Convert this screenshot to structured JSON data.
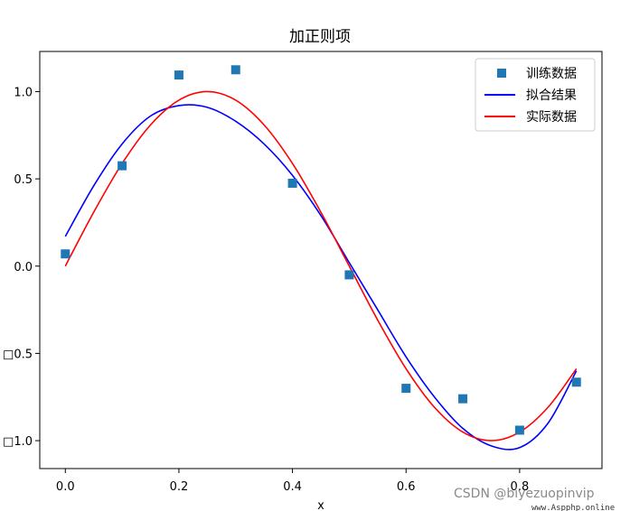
{
  "chart_data": {
    "type": "scatter",
    "title": "加正则项",
    "xlabel": "x",
    "ylabel": "",
    "xlim": [
      -0.045,
      0.945
    ],
    "ylim": [
      -1.16,
      1.23
    ],
    "xticks": [
      0.0,
      0.2,
      0.4,
      0.6,
      0.8
    ],
    "xtick_labels": [
      "0.0",
      "0.2",
      "0.4",
      "0.6",
      "0.8"
    ],
    "yticks": [
      1.0,
      0.5,
      0.0,
      -0.5,
      -1.0
    ],
    "ytick_labels": [
      "1.0",
      "0.5",
      "0.0",
      "□0.5",
      "□1.0"
    ],
    "grid": false,
    "legend_position": "top-right",
    "series": [
      {
        "name": "训练数据",
        "kind": "scatter",
        "marker": "square",
        "color": "#1f77b4",
        "x": [
          0.0,
          0.1,
          0.2,
          0.3,
          0.4,
          0.5,
          0.6,
          0.7,
          0.8,
          0.9
        ],
        "y": [
          0.07,
          0.575,
          1.095,
          1.125,
          0.475,
          -0.05,
          -0.7,
          -0.76,
          -0.94,
          -0.665
        ]
      },
      {
        "name": "拟合结果",
        "kind": "line",
        "color": "#0000ff",
        "x": [
          0.0,
          0.05,
          0.1,
          0.15,
          0.2,
          0.25,
          0.3,
          0.35,
          0.4,
          0.45,
          0.5,
          0.55,
          0.6,
          0.65,
          0.7,
          0.75,
          0.8,
          0.85,
          0.9
        ],
        "y": [
          0.17,
          0.46,
          0.7,
          0.86,
          0.92,
          0.91,
          0.83,
          0.7,
          0.52,
          0.29,
          0.02,
          -0.25,
          -0.52,
          -0.75,
          -0.93,
          -1.03,
          -1.04,
          -0.9,
          -0.6
        ]
      },
      {
        "name": "实际数据",
        "kind": "line",
        "color": "#ff0000",
        "x": [
          0.0,
          0.05,
          0.1,
          0.15,
          0.2,
          0.25,
          0.3,
          0.35,
          0.4,
          0.45,
          0.5,
          0.55,
          0.6,
          0.65,
          0.7,
          0.75,
          0.8,
          0.85,
          0.9
        ],
        "y": [
          0.0,
          0.309,
          0.588,
          0.809,
          0.951,
          1.0,
          0.951,
          0.809,
          0.588,
          0.309,
          0.0,
          -0.309,
          -0.588,
          -0.809,
          -0.951,
          -1.0,
          -0.951,
          -0.809,
          -0.588
        ]
      }
    ]
  },
  "watermark": {
    "text": "CSDN @biyezuopinvip",
    "site": "www.Aspphp.online"
  }
}
